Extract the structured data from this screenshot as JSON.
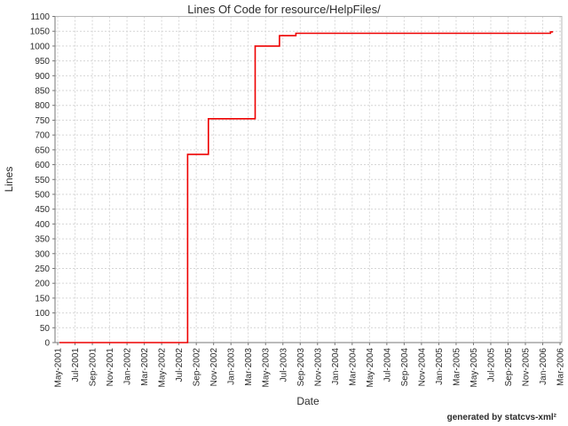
{
  "page": {
    "background_color": "#ffffff"
  },
  "footer": {
    "credit": "generated by statcvs-xml²"
  },
  "chart_data": {
    "type": "line",
    "step": true,
    "title": "Lines Of Code for resource/HelpFiles/",
    "xlabel": "Date",
    "ylabel": "Lines",
    "legend": "none",
    "grid": "dashed",
    "line_color": "#ee0000",
    "grid_color": "#d6d6d6",
    "axis_color": "#777777",
    "border_color": "#b8b8b8",
    "tick_text_color": "#2b2b2b",
    "x_unit": "months since May-2001",
    "xlim": [
      -0.31,
      58.2
    ],
    "ylim": [
      0,
      1100
    ],
    "y_tick_step": 50,
    "y_ticks": [
      0,
      50,
      100,
      150,
      200,
      250,
      300,
      350,
      400,
      450,
      500,
      550,
      600,
      650,
      700,
      750,
      800,
      850,
      900,
      950,
      1000,
      1050,
      1100
    ],
    "x_ticks": [
      {
        "label": "May-2001",
        "month": 0
      },
      {
        "label": "Jul-2001",
        "month": 2
      },
      {
        "label": "Sep-2001",
        "month": 4
      },
      {
        "label": "Nov-2001",
        "month": 6
      },
      {
        "label": "Jan-2002",
        "month": 8
      },
      {
        "label": "Mar-2002",
        "month": 10
      },
      {
        "label": "May-2002",
        "month": 12
      },
      {
        "label": "Jul-2002",
        "month": 14
      },
      {
        "label": "Sep-2002",
        "month": 16
      },
      {
        "label": "Nov-2002",
        "month": 18
      },
      {
        "label": "Jan-2003",
        "month": 20
      },
      {
        "label": "Mar-2003",
        "month": 22
      },
      {
        "label": "May-2003",
        "month": 24
      },
      {
        "label": "Jul-2003",
        "month": 26
      },
      {
        "label": "Sep-2003",
        "month": 28
      },
      {
        "label": "Nov-2003",
        "month": 30
      },
      {
        "label": "Jan-2004",
        "month": 32
      },
      {
        "label": "Mar-2004",
        "month": 34
      },
      {
        "label": "May-2004",
        "month": 36
      },
      {
        "label": "Jul-2004",
        "month": 38
      },
      {
        "label": "Sep-2004",
        "month": 40
      },
      {
        "label": "Nov-2004",
        "month": 42
      },
      {
        "label": "Jan-2005",
        "month": 44
      },
      {
        "label": "Mar-2005",
        "month": 46
      },
      {
        "label": "May-2005",
        "month": 48
      },
      {
        "label": "Jul-2005",
        "month": 50
      },
      {
        "label": "Sep-2005",
        "month": 52
      },
      {
        "label": "Nov-2005",
        "month": 54
      },
      {
        "label": "Jan-2006",
        "month": 56
      },
      {
        "label": "Mar-2006",
        "month": 58
      }
    ],
    "series": [
      {
        "name": "Lines of Code",
        "points": [
          {
            "x": 0.2,
            "y": 0,
            "date": "May-2001"
          },
          {
            "x": 15.0,
            "y": 0,
            "date": "Aug-2002"
          },
          {
            "x": 15.0,
            "y": 635,
            "date": "Aug-2002"
          },
          {
            "x": 17.4,
            "y": 635,
            "date": "Oct-2002"
          },
          {
            "x": 17.4,
            "y": 755,
            "date": "Oct-2002"
          },
          {
            "x": 22.8,
            "y": 755,
            "date": "Apr-2003"
          },
          {
            "x": 22.8,
            "y": 1000,
            "date": "Apr-2003"
          },
          {
            "x": 25.6,
            "y": 1000,
            "date": "Jun-2003"
          },
          {
            "x": 25.6,
            "y": 1035,
            "date": "Jun-2003"
          },
          {
            "x": 27.5,
            "y": 1035,
            "date": "Aug-2003"
          },
          {
            "x": 27.5,
            "y": 1043,
            "date": "Aug-2003"
          },
          {
            "x": 56.9,
            "y": 1043,
            "date": "Feb-2006"
          },
          {
            "x": 56.9,
            "y": 1048,
            "date": "Feb-2006"
          },
          {
            "x": 57.2,
            "y": 1048,
            "date": "Feb-2006"
          }
        ]
      }
    ]
  }
}
